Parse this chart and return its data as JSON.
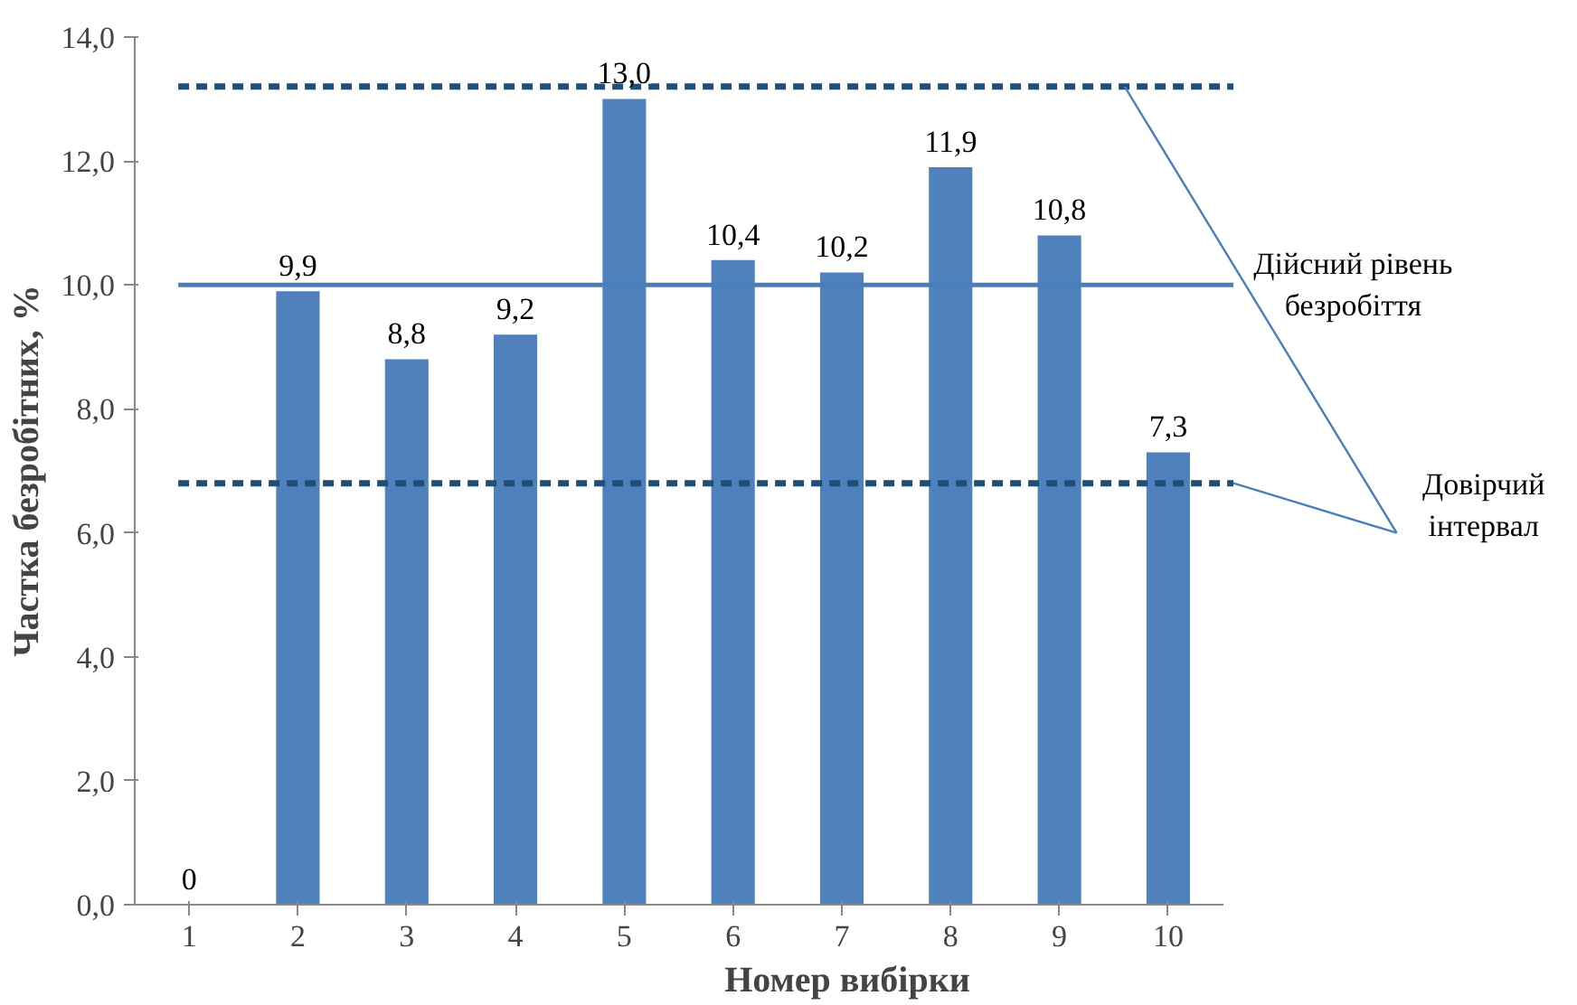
{
  "chart_data": {
    "type": "bar",
    "xlabel": "Номер вибірки",
    "ylabel": "Частка безробітних, %",
    "categories": [
      "1",
      "2",
      "3",
      "4",
      "5",
      "6",
      "7",
      "8",
      "9",
      "10"
    ],
    "values": [
      0,
      9.9,
      8.8,
      9.2,
      13.0,
      10.4,
      10.2,
      11.9,
      10.8,
      7.3
    ],
    "value_labels": [
      "0",
      "9,9",
      "8,8",
      "9,2",
      "13,0",
      "10,4",
      "10,2",
      "11,9",
      "10,8",
      "7,3"
    ],
    "color": "#4f81bd",
    "ylim": [
      0,
      14
    ],
    "yticks": [
      {
        "value": 0,
        "label": "0,0"
      },
      {
        "value": 2,
        "label": "2,0"
      },
      {
        "value": 4,
        "label": "4,0"
      },
      {
        "value": 6,
        "label": "6,0"
      },
      {
        "value": 8,
        "label": "8,0"
      },
      {
        "value": 10,
        "label": "10,0"
      },
      {
        "value": 12,
        "label": "12,0"
      },
      {
        "value": 14,
        "label": "14,0"
      }
    ],
    "grid": false,
    "ref_lines": [
      {
        "axis": "y",
        "value": 10,
        "label": "Дійсний рівень безробіття",
        "color": "#4a7ebb",
        "line_style": "solid"
      },
      {
        "axis": "y",
        "value": 13.2,
        "label": "Довірчий інтервал",
        "color": "#1f4e79",
        "line_style": "dashed"
      },
      {
        "axis": "y",
        "value": 6.8,
        "label": null,
        "color": "#1f4e79",
        "line_style": "dashed"
      }
    ]
  }
}
